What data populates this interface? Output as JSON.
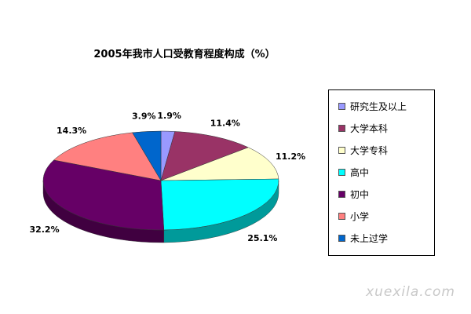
{
  "chart_data": {
    "type": "pie",
    "title": "2005年我市人口受教育程度构成（%）",
    "legend_position": "right",
    "slices": [
      {
        "name": "研究生及以上",
        "value": 1.9,
        "label": "1.9%",
        "color": "#9999ff",
        "side": "#6f6fc0"
      },
      {
        "name": "大学本科",
        "value": 11.4,
        "label": "11.4%",
        "color": "#993366",
        "side": "#6b2447"
      },
      {
        "name": "大学专科",
        "value": 11.2,
        "label": "11.2%",
        "color": "#ffffcc",
        "side": "#c8c898"
      },
      {
        "name": "高中",
        "value": 25.1,
        "label": "25.1%",
        "color": "#00ffff",
        "side": "#009a9a"
      },
      {
        "name": "初中",
        "value": 32.2,
        "label": "32.2%",
        "color": "#660066",
        "side": "#400040"
      },
      {
        "name": "小学",
        "value": 14.3,
        "label": "14.3%",
        "color": "#ff8080",
        "side": "#c05c5c"
      },
      {
        "name": "未上过学",
        "value": 3.9,
        "label": "3.9%",
        "color": "#0066cc",
        "side": "#004a94"
      }
    ]
  },
  "watermark": "xuexila.com"
}
